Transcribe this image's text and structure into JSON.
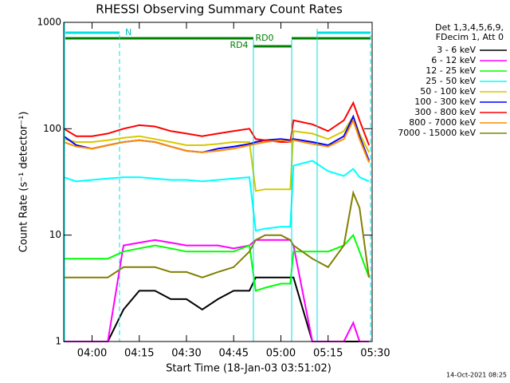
{
  "chart_data": {
    "type": "line",
    "title": "RHESSI Observing Summary Count Rates",
    "x_label": "Start Time (18-Jan-03 03:51:02)",
    "y_label": "Count Rate (s⁻¹ detector⁻¹)",
    "legend_header": [
      "Det 1,3,4,5,6,9,",
      "FDecim 1, Att 0"
    ],
    "flags": [
      "N",
      "RD0",
      "RD4"
    ],
    "footer": "14-Oct-2021 08:25",
    "log_y": true,
    "xlim": [
      -9,
      89
    ],
    "xticks": [
      {
        "value": 0,
        "label": "04:00"
      },
      {
        "value": 15,
        "label": "04:15"
      },
      {
        "value": 30,
        "label": "04:30"
      },
      {
        "value": 45,
        "label": "04:45"
      },
      {
        "value": 60,
        "label": "05:00"
      },
      {
        "value": 75,
        "label": "05:15"
      },
      {
        "value": 90,
        "label": "05:30"
      }
    ],
    "ylim": [
      1,
      1000
    ],
    "yticks": [
      1,
      10,
      100,
      1000
    ],
    "x": [
      -9,
      -5,
      0,
      5,
      10,
      15,
      20,
      25,
      30,
      35,
      40,
      45,
      50,
      52,
      55,
      60,
      63,
      64,
      70,
      75,
      80,
      83,
      85,
      88
    ],
    "series": [
      {
        "name": "3 - 6 keV",
        "color": "#000000",
        "values": [
          1,
          1,
          1,
          1,
          2,
          3,
          3,
          2.5,
          2.5,
          2,
          2.5,
          3,
          3,
          4,
          4,
          4,
          4,
          4,
          1,
          1,
          1,
          1,
          1,
          1
        ]
      },
      {
        "name": "6 - 12 keV",
        "color": "#ff00ff",
        "values": [
          1,
          1,
          1,
          1,
          8,
          8.5,
          9,
          8.5,
          8,
          8,
          8,
          7.5,
          8,
          9,
          9,
          9,
          9,
          8,
          1,
          1,
          1,
          1.5,
          1,
          1
        ]
      },
      {
        "name": "12 - 25 keV",
        "color": "#00ff00",
        "values": [
          6,
          6,
          6,
          6,
          7,
          7.5,
          8,
          7.5,
          7,
          7,
          7,
          7,
          8,
          3,
          3.2,
          3.5,
          3.5,
          7,
          7,
          7,
          8,
          10,
          7,
          4
        ]
      },
      {
        "name": "25 - 50 keV",
        "color": "#00ffff",
        "values": [
          35,
          32,
          33,
          34,
          35,
          35,
          34,
          33,
          33,
          32,
          33,
          34,
          35,
          11,
          11.5,
          12,
          12,
          45,
          50,
          40,
          36,
          42,
          35,
          32
        ]
      },
      {
        "name": "50 - 100 keV",
        "color": "#d8c800",
        "values": [
          80,
          75,
          75,
          78,
          82,
          85,
          80,
          75,
          70,
          70,
          72,
          75,
          75,
          26,
          27,
          27,
          27,
          95,
          90,
          80,
          95,
          130,
          90,
          60
        ]
      },
      {
        "name": "100 - 300 keV",
        "color": "#0000ff",
        "values": [
          85,
          70,
          65,
          70,
          75,
          78,
          75,
          68,
          62,
          60,
          65,
          68,
          72,
          75,
          78,
          80,
          78,
          80,
          75,
          70,
          85,
          130,
          85,
          50
        ]
      },
      {
        "name": "300 - 800 keV",
        "color": "#ff0000",
        "values": [
          100,
          85,
          85,
          90,
          100,
          108,
          105,
          95,
          90,
          85,
          90,
          95,
          100,
          80,
          78,
          75,
          75,
          120,
          110,
          95,
          120,
          175,
          120,
          70
        ]
      },
      {
        "name": "800 - 7000 keV",
        "color": "#ff8c00",
        "values": [
          75,
          68,
          65,
          70,
          75,
          78,
          75,
          68,
          62,
          60,
          62,
          65,
          70,
          72,
          75,
          78,
          75,
          78,
          72,
          68,
          80,
          120,
          80,
          48
        ]
      },
      {
        "name": "7000 - 15000 keV",
        "color": "#808000",
        "values": [
          4,
          4,
          4,
          4,
          5,
          5,
          5,
          4.5,
          4.5,
          4,
          4.5,
          5,
          7,
          9,
          10,
          10,
          9,
          8,
          6,
          5,
          8,
          25,
          18,
          4
        ]
      }
    ]
  }
}
